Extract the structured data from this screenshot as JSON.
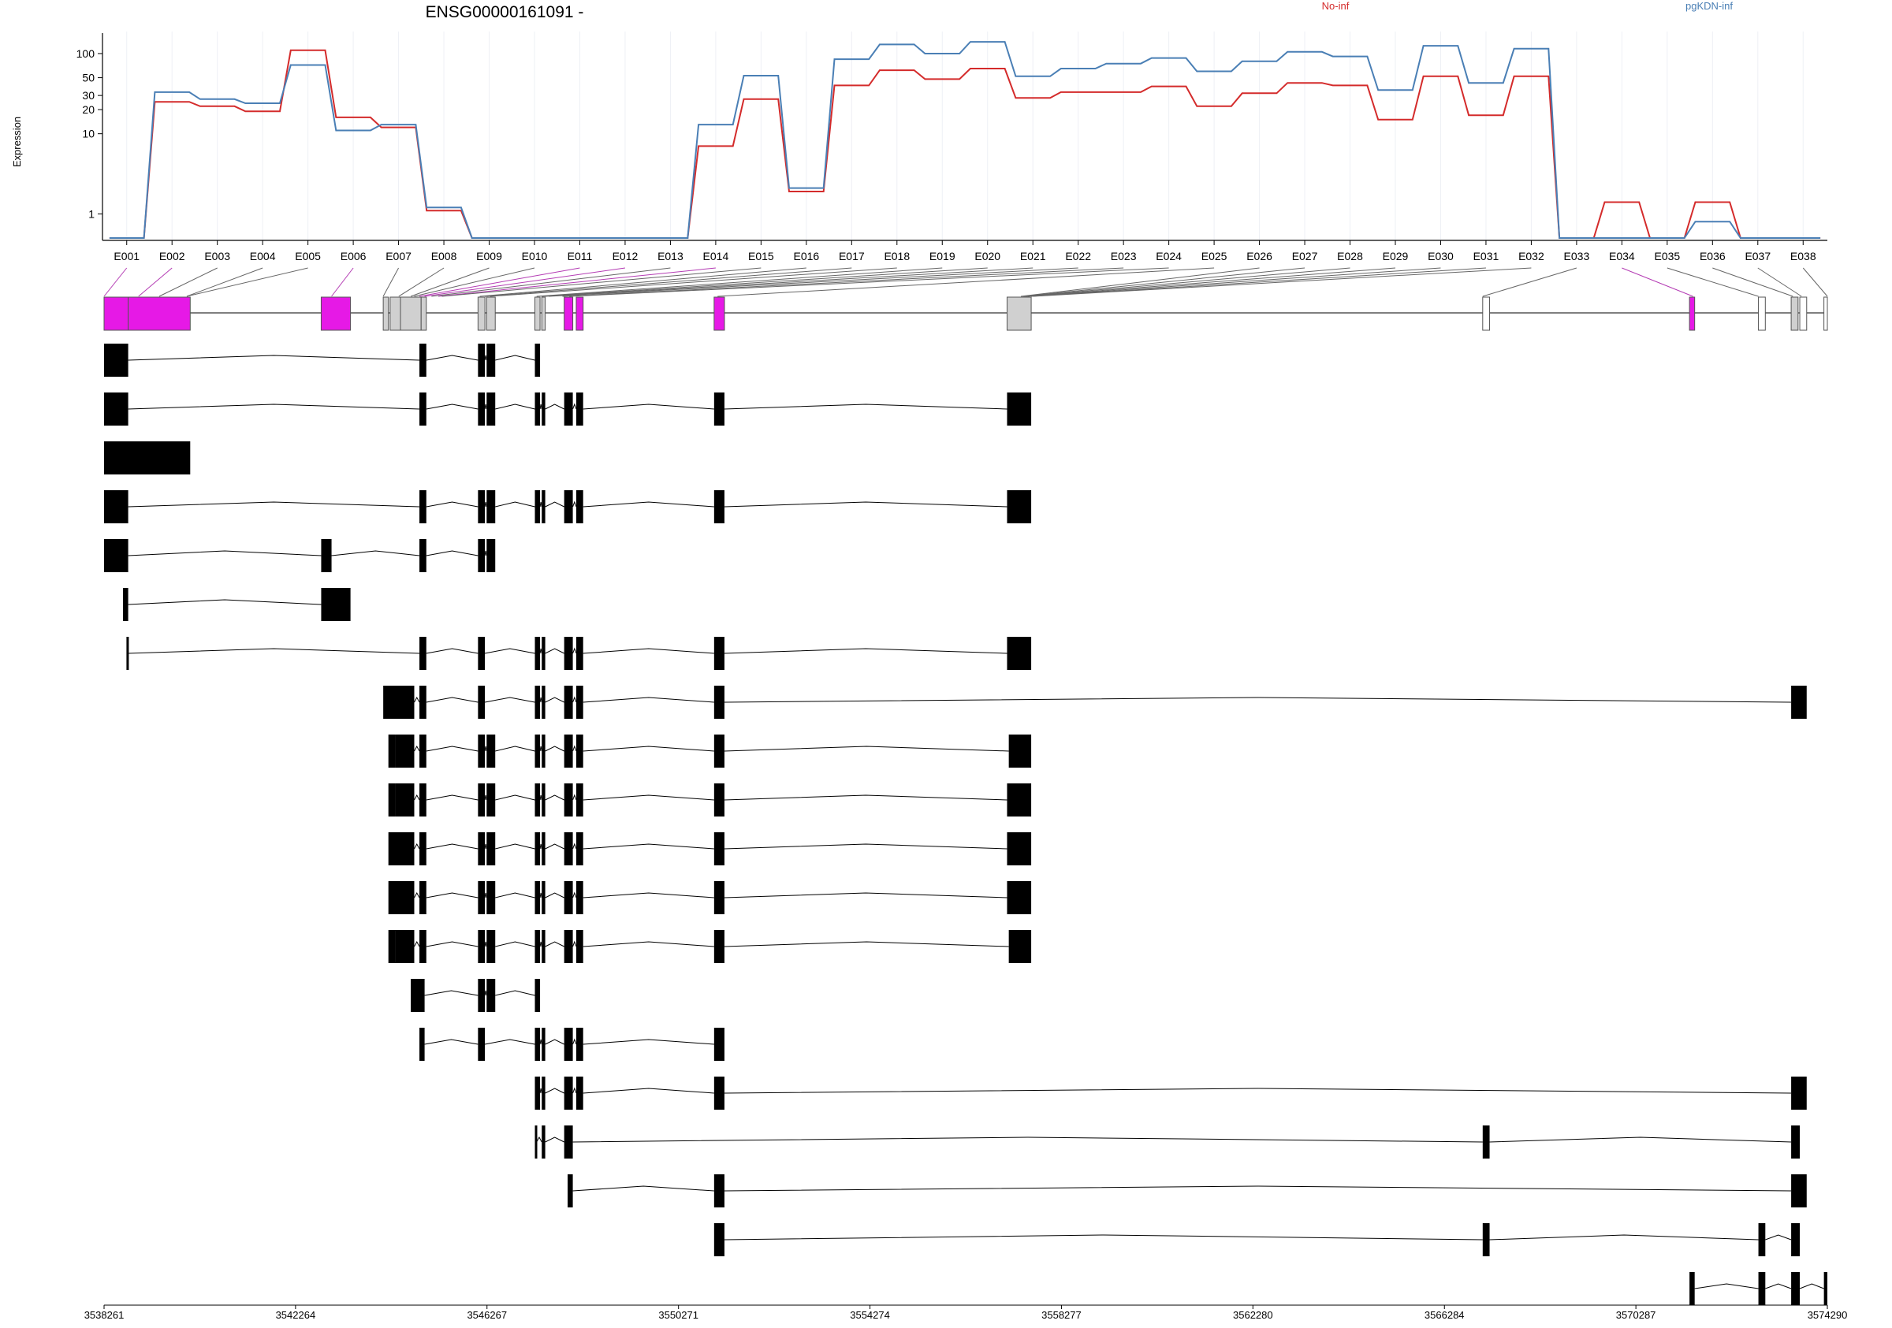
{
  "chart_data": {
    "type": "line",
    "title": "ENSG00000161091 -",
    "ylabel": "Expression",
    "y_scale": "log",
    "y_ticks": [
      1,
      10,
      20,
      30,
      50,
      100
    ],
    "categories": [
      "E001",
      "E002",
      "E003",
      "E004",
      "E005",
      "E006",
      "E007",
      "E008",
      "E009",
      "E010",
      "E011",
      "E012",
      "E013",
      "E014",
      "E015",
      "E016",
      "E017",
      "E018",
      "E019",
      "E020",
      "E021",
      "E022",
      "E023",
      "E024",
      "E025",
      "E026",
      "E027",
      "E028",
      "E029",
      "E030",
      "E031",
      "E032",
      "E033",
      "E034",
      "E035",
      "E036",
      "E037",
      "E038"
    ],
    "series": [
      {
        "name": "No-inf",
        "color": "#d42b2b",
        "values": [
          0.5,
          25,
          22,
          19,
          110,
          16,
          12,
          1.1,
          0.5,
          0.5,
          0.5,
          0.5,
          0.5,
          7,
          27,
          1.9,
          40,
          62,
          48,
          65,
          28,
          33,
          33,
          39,
          22,
          32,
          43,
          40,
          15,
          52,
          17,
          52,
          0.5,
          1.4,
          0.5,
          1.4,
          0.5,
          0.5
        ]
      },
      {
        "name": "pgKDN-inf",
        "color": "#4a7fb5",
        "values": [
          0.5,
          33,
          27,
          24,
          72,
          11,
          13,
          1.2,
          0.5,
          0.5,
          0.5,
          0.5,
          0.5,
          13,
          53,
          2.1,
          85,
          130,
          100,
          140,
          52,
          65,
          75,
          88,
          60,
          80,
          105,
          92,
          35,
          125,
          43,
          115,
          0.5,
          0.5,
          0.5,
          0.8,
          0.5,
          0.5
        ]
      }
    ],
    "exon_highlight": [
      "E001",
      "E002",
      "E006",
      "E011",
      "E012",
      "E014",
      "E034"
    ],
    "transcripts": 20,
    "genomic_axis": {
      "start": 3538261,
      "end": 3574290,
      "ticks": [
        3538261,
        3542264,
        3546267,
        3550271,
        3554274,
        3558277,
        3562280,
        3566284,
        3570287,
        3574290
      ]
    }
  }
}
